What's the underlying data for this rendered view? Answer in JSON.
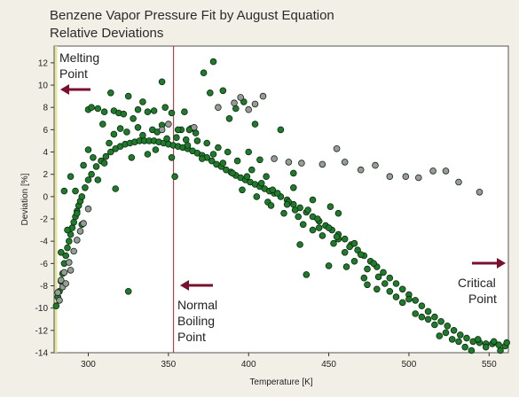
{
  "title": {
    "line1": "Benzene Vapor Pressure Fit by August Equation",
    "line2": "Relative Deviations"
  },
  "colors": {
    "background": "#f2efe6",
    "plot_bg": "#ffffff",
    "point_green": "#1f7a2c",
    "point_gray": "#9a9a9a",
    "outline": "#0d2a10",
    "boiling_line": "#b02020",
    "arrow": "#7a1030",
    "melting_line": "#e6e6a0"
  },
  "annotations": {
    "melting": [
      "Melting",
      "Point"
    ],
    "boiling": [
      "Normal",
      "Boiling",
      "Point"
    ],
    "critical": [
      "Critical",
      "Point"
    ]
  },
  "chart_data": {
    "type": "scatter",
    "title": "Benzene Vapor Pressure Fit by August Equation",
    "subtitle": "Relative Deviations",
    "xlabel": "Temperature [K]",
    "ylabel": "Deviation [%]",
    "xlim": [
      278.7,
      562.0
    ],
    "ylim": [
      -14,
      13.5
    ],
    "xticks": [
      300,
      350,
      400,
      450,
      500,
      550
    ],
    "yticks": [
      12,
      10,
      8,
      6,
      4,
      2,
      0,
      -2,
      -4,
      -6,
      -8,
      -10,
      -12,
      -14
    ],
    "grid": false,
    "vertical_lines": [
      {
        "name": "Melting Point",
        "x": 278.7
      },
      {
        "name": "Normal Boiling Point",
        "x": 353.2
      }
    ],
    "series": [
      {
        "color": "green",
        "points": [
          [
            280,
            -9.8
          ],
          [
            281,
            -9
          ],
          [
            282,
            -8.5
          ],
          [
            283,
            -7.6
          ],
          [
            284,
            -6.9
          ],
          [
            285,
            -6
          ],
          [
            286,
            -5.3
          ],
          [
            287,
            -4.6
          ],
          [
            288,
            -4
          ],
          [
            289,
            -3.4
          ],
          [
            290,
            -2.8
          ],
          [
            291,
            -2.3
          ],
          [
            292,
            -1.8
          ],
          [
            293,
            -1.3
          ],
          [
            294,
            -0.8
          ],
          [
            295,
            -0.4
          ],
          [
            296,
            0
          ],
          [
            298,
            0.8
          ],
          [
            300,
            1.5
          ],
          [
            302,
            2
          ],
          [
            305,
            2.7
          ],
          [
            308,
            3.2
          ],
          [
            311,
            3.6
          ],
          [
            314,
            4
          ],
          [
            317,
            4.3
          ],
          [
            320,
            4.5
          ],
          [
            323,
            4.7
          ],
          [
            326,
            4.8
          ],
          [
            329,
            4.9
          ],
          [
            332,
            5
          ],
          [
            335,
            5
          ],
          [
            338,
            5
          ],
          [
            341,
            5
          ],
          [
            344,
            4.9
          ],
          [
            347,
            4.8
          ],
          [
            350,
            4.7
          ],
          [
            353,
            4.6
          ],
          [
            356,
            4.5
          ],
          [
            359,
            4.4
          ],
          [
            362,
            4.3
          ],
          [
            365,
            4.1
          ],
          [
            368,
            3.9
          ],
          [
            371,
            3.7
          ],
          [
            374,
            3.5
          ],
          [
            377,
            3.2
          ],
          [
            380,
            2.9
          ],
          [
            383,
            2.7
          ],
          [
            386,
            2.4
          ],
          [
            389,
            2.2
          ],
          [
            392,
            1.9
          ],
          [
            395,
            1.7
          ],
          [
            398,
            1.5
          ],
          [
            401,
            1.3
          ],
          [
            404,
            1.1
          ],
          [
            407,
            0.9
          ],
          [
            410,
            0.7
          ],
          [
            413,
            0.5
          ],
          [
            416,
            0.3
          ],
          [
            420,
            0
          ],
          [
            424,
            -0.3
          ],
          [
            428,
            -0.7
          ],
          [
            432,
            -1
          ],
          [
            436,
            -1.4
          ],
          [
            440,
            -1.8
          ],
          [
            444,
            -2.2
          ],
          [
            448,
            -2.6
          ],
          [
            452,
            -3
          ],
          [
            456,
            -3.4
          ],
          [
            460,
            -3.8
          ],
          [
            464,
            -4.3
          ],
          [
            468,
            -4.8
          ],
          [
            472,
            -5.3
          ],
          [
            476,
            -5.8
          ],
          [
            480,
            -6.3
          ],
          [
            484,
            -6.8
          ],
          [
            488,
            -7.3
          ],
          [
            492,
            -7.8
          ],
          [
            496,
            -8.3
          ],
          [
            500,
            -8.8
          ],
          [
            504,
            -9.3
          ],
          [
            508,
            -9.8
          ],
          [
            512,
            -10.3
          ],
          [
            516,
            -10.8
          ],
          [
            520,
            -11.2
          ],
          [
            524,
            -11.6
          ],
          [
            528,
            -12
          ],
          [
            532,
            -12.4
          ],
          [
            536,
            -12.7
          ],
          [
            540,
            -13
          ],
          [
            544,
            -13.1
          ],
          [
            548,
            -13.2
          ],
          [
            552,
            -13.2
          ],
          [
            556,
            -13.3
          ],
          [
            560,
            -13.4
          ],
          [
            283,
            -5
          ],
          [
            287,
            -3
          ],
          [
            292,
            0.5
          ],
          [
            297,
            2.8
          ],
          [
            300,
            4.2
          ],
          [
            303,
            3.5
          ],
          [
            306,
            1.5
          ],
          [
            310,
            3
          ],
          [
            313,
            4.8
          ],
          [
            316,
            5.6
          ],
          [
            320,
            6.1
          ],
          [
            324,
            5.8
          ],
          [
            327,
            3.5
          ],
          [
            331,
            6.2
          ],
          [
            334,
            5.5
          ],
          [
            337,
            3.8
          ],
          [
            340,
            6
          ],
          [
            343,
            5.8
          ],
          [
            346,
            6.4
          ],
          [
            349,
            5.2
          ],
          [
            352,
            3.5
          ],
          [
            355,
            5.3
          ],
          [
            358,
            6
          ],
          [
            361,
            5.1
          ],
          [
            364,
            6.1
          ],
          [
            368,
            5
          ],
          [
            371,
            3.4
          ],
          [
            374,
            4.8
          ],
          [
            378,
            3.8
          ],
          [
            381,
            4.4
          ],
          [
            384,
            3
          ],
          [
            387,
            4
          ],
          [
            390,
            2.1
          ],
          [
            393,
            3.2
          ],
          [
            396,
            0.6
          ],
          [
            399,
            1.8
          ],
          [
            402,
            2.4
          ],
          [
            405,
            0
          ],
          [
            408,
            1.2
          ],
          [
            412,
            -0.5
          ],
          [
            415,
            0.6
          ],
          [
            418,
            0.3
          ],
          [
            422,
            -1.5
          ],
          [
            425,
            -0.5
          ],
          [
            428,
            0.8
          ],
          [
            431,
            -1.8
          ],
          [
            434,
            -2.5
          ],
          [
            437,
            -1.2
          ],
          [
            440,
            -3
          ],
          [
            443,
            -2
          ],
          [
            446,
            -3.5
          ],
          [
            450,
            -2.8
          ],
          [
            453,
            -4.2
          ],
          [
            456,
            -3.8
          ],
          [
            460,
            -5
          ],
          [
            463,
            -4.5
          ],
          [
            466,
            -5.8
          ],
          [
            470,
            -5.2
          ],
          [
            474,
            -6.5
          ],
          [
            478,
            -6
          ],
          [
            481,
            -7.2
          ],
          [
            485,
            -7.8
          ],
          [
            488,
            -8.5
          ],
          [
            492,
            -9
          ],
          [
            496,
            -9.5
          ],
          [
            500,
            -9.2
          ],
          [
            504,
            -10.5
          ],
          [
            508,
            -10.8
          ],
          [
            512,
            -11
          ],
          [
            516,
            -11.5
          ],
          [
            519,
            -12.5
          ],
          [
            523,
            -12.2
          ],
          [
            527,
            -12.8
          ],
          [
            531,
            -13
          ],
          [
            535,
            -13.5
          ],
          [
            539,
            -13.8
          ],
          [
            543,
            -12.8
          ],
          [
            548,
            -13.5
          ],
          [
            553,
            -13
          ],
          [
            557,
            -13.8
          ],
          [
            561,
            -13.1
          ],
          [
            285,
            0.5
          ],
          [
            289,
            1.8
          ],
          [
            293,
            -1.5
          ],
          [
            296,
            -2.5
          ],
          [
            300,
            7.8
          ],
          [
            302,
            8
          ],
          [
            306,
            7.9
          ],
          [
            310,
            7.6
          ],
          [
            314,
            9.3
          ],
          [
            316,
            7.7
          ],
          [
            319,
            7.5
          ],
          [
            322,
            7.4
          ],
          [
            325,
            9
          ],
          [
            328,
            7
          ],
          [
            331,
            7.8
          ],
          [
            334,
            8.5
          ],
          [
            337,
            7.6
          ],
          [
            341,
            7.7
          ],
          [
            346,
            10.3
          ],
          [
            348,
            8
          ],
          [
            352,
            7.5
          ],
          [
            356,
            6
          ],
          [
            360,
            7.6
          ],
          [
            363,
            6
          ],
          [
            367,
            5.7
          ],
          [
            372,
            11.1
          ],
          [
            376,
            9.3
          ],
          [
            378,
            12.1
          ],
          [
            384,
            9.5
          ],
          [
            388,
            7
          ],
          [
            392,
            7.9
          ],
          [
            397,
            8.5
          ],
          [
            400,
            4
          ],
          [
            404,
            6.5
          ],
          [
            407,
            3.3
          ],
          [
            411,
            1.8
          ],
          [
            414,
            -0.8
          ],
          [
            420,
            6
          ],
          [
            424,
            -0.7
          ],
          [
            428,
            2.1
          ],
          [
            436,
            -7
          ],
          [
            444,
            -2.8
          ],
          [
            455,
            -3.6
          ],
          [
            461,
            -6.3
          ],
          [
            472,
            -7.3
          ],
          [
            480,
            -8.3
          ],
          [
            456,
            -1.5
          ],
          [
            466,
            -4.2
          ],
          [
            440,
            -0.3
          ],
          [
            451,
            -0.9
          ],
          [
            429,
            -1.2
          ],
          [
            474,
            -7.9
          ],
          [
            432,
            -4.3
          ],
          [
            325,
            -8.5
          ],
          [
            354,
            1.8
          ],
          [
            342,
            4.2
          ],
          [
            362,
            4.6
          ],
          [
            309,
            6.5
          ],
          [
            317,
            0.7
          ],
          [
            450,
            -6.2
          ]
        ]
      },
      {
        "color": "gray",
        "points": [
          [
            281,
            -8.6
          ],
          [
            282,
            -9.3
          ],
          [
            283,
            -7.5
          ],
          [
            284,
            -8.1
          ],
          [
            285,
            -6.8
          ],
          [
            286,
            -7.8
          ],
          [
            288,
            -5.9
          ],
          [
            289,
            -6.6
          ],
          [
            291,
            -4.9
          ],
          [
            293,
            -3.9
          ],
          [
            295,
            -3.1
          ],
          [
            297,
            -2.4
          ],
          [
            300,
            -1.1
          ],
          [
            366,
            6.2
          ],
          [
            381,
            8
          ],
          [
            391,
            8.4
          ],
          [
            395,
            8.9
          ],
          [
            400,
            7.8
          ],
          [
            404,
            8.3
          ],
          [
            409,
            9
          ],
          [
            416,
            3.4
          ],
          [
            425,
            3.1
          ],
          [
            433,
            3
          ],
          [
            446,
            2.9
          ],
          [
            455,
            4.3
          ],
          [
            460,
            3.1
          ],
          [
            470,
            2.4
          ],
          [
            479,
            2.8
          ],
          [
            488,
            1.8
          ],
          [
            498,
            1.8
          ],
          [
            506,
            1.7
          ],
          [
            515,
            2.3
          ],
          [
            523,
            2.3
          ],
          [
            531,
            1.3
          ],
          [
            544,
            0.4
          ],
          [
            350,
            6.5
          ],
          [
            346,
            6
          ]
        ]
      }
    ]
  }
}
